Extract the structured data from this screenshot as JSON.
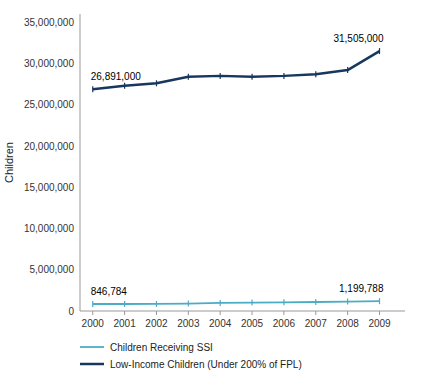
{
  "chart_data": {
    "type": "line",
    "x": [
      2000,
      2001,
      2002,
      2003,
      2004,
      2005,
      2006,
      2007,
      2008,
      2009
    ],
    "series": [
      {
        "name": "Low-Income Children (Under 200% of FPL)",
        "color": "#17375E",
        "marker": "vline",
        "values": [
          26891000,
          27300000,
          27600000,
          28400000,
          28500000,
          28400000,
          28500000,
          28700000,
          29200000,
          31505000
        ]
      },
      {
        "name": "Children Receiving SSI",
        "color": "#4BACC6",
        "marker": "vline",
        "values": [
          846784,
          847000,
          855000,
          900000,
          980000,
          1020000,
          1050000,
          1090000,
          1140000,
          1199788
        ]
      }
    ],
    "ylabel": "Children",
    "xlim": [
      1999.6,
      2009.8
    ],
    "xticks": [
      2000,
      2001,
      2002,
      2003,
      2004,
      2005,
      2006,
      2007,
      2008,
      2009
    ],
    "ylim": [
      0,
      36000000
    ],
    "yticks": [
      0,
      {
        "value": 5000000,
        "label": "5,000,000"
      },
      {
        "value": 10000000,
        "label": "10,000,000"
      },
      {
        "value": 15000000,
        "label": "15,000,000"
      },
      {
        "value": 20000000,
        "label": "20,000,000"
      },
      {
        "value": 25000000,
        "label": "25,000,000"
      },
      {
        "value": 30000000,
        "label": "30,000,000"
      },
      {
        "value": 35000000,
        "label": "35,000,000"
      }
    ],
    "annotations": [
      {
        "text": "26,891,000",
        "x": 2000,
        "y": 26891000,
        "color": "#000000"
      },
      {
        "text": "31,505,000",
        "x": 2009,
        "y": 31505000,
        "color": "#000000"
      },
      {
        "text": "846,784",
        "x": 2000,
        "y": 846784,
        "color": "#000000"
      },
      {
        "text": "1,199,788",
        "x": 2009,
        "y": 1199788,
        "color": "#000000"
      }
    ],
    "grid": false,
    "legend": "bottom"
  }
}
